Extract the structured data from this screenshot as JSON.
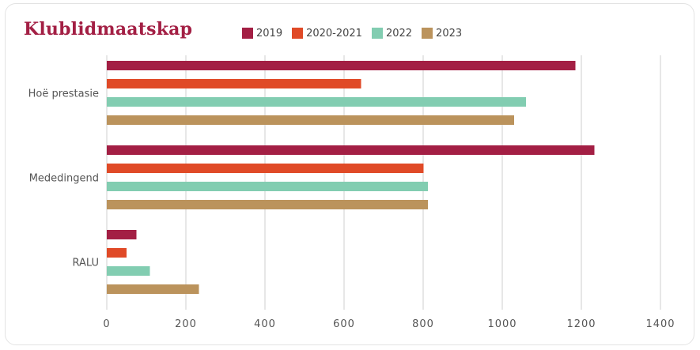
{
  "chart_data": {
    "type": "bar",
    "orientation": "horizontal",
    "title": "Klublidmaatskap",
    "categories": [
      "Hoë prestasie",
      "Mededingend",
      "RALU"
    ],
    "series": [
      {
        "name": "2019",
        "color": "#a31f44",
        "values": [
          1185,
          1233,
          75
        ]
      },
      {
        "name": "2020-2021",
        "color": "#e04a27",
        "values": [
          643,
          801,
          50
        ]
      },
      {
        "name": "2022",
        "color": "#82cdb1",
        "values": [
          1060,
          812,
          109
        ]
      },
      {
        "name": "2023",
        "color": "#bb935c",
        "values": [
          1030,
          812,
          233
        ]
      }
    ],
    "x_ticks": [
      "0",
      "200",
      "400",
      "600",
      "800",
      "1000",
      "1200",
      "1400"
    ],
    "xlim": [
      0,
      1400
    ],
    "grid": "vertical",
    "legend_position": "top"
  }
}
